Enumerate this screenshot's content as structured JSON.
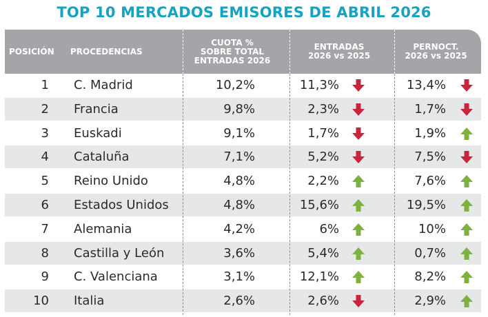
{
  "title": "TOP 10 MERCADOS EMISORES DE ABRIL 2026",
  "headers": {
    "posicion": "POSICIÓN",
    "procedencias": "PROCEDENCIAS",
    "cuota": "CUOTA %\nSOBRE TOTAL\nENTRADAS 2026",
    "entradas": "ENTRADAS\n2026 vs 2025",
    "pernoct": "PERNOCT.\n2026 vs 2025"
  },
  "colors": {
    "down": "#c8243c",
    "up": "#7eb13f",
    "title": "#16a3c2",
    "header_bg": "#a3a5a8",
    "shade": "#e6e7e8"
  },
  "rows": [
    {
      "pos": "1",
      "name": "C. Madrid",
      "cuota": "10,2%",
      "entradas": "11,3%",
      "entradas_trend": "down",
      "pernoct": "13,4%",
      "pernoct_trend": "down"
    },
    {
      "pos": "2",
      "name": "Francia",
      "cuota": "9,8%",
      "entradas": "2,3%",
      "entradas_trend": "down",
      "pernoct": "1,7%",
      "pernoct_trend": "down"
    },
    {
      "pos": "3",
      "name": "Euskadi",
      "cuota": "9,1%",
      "entradas": "1,7%",
      "entradas_trend": "down",
      "pernoct": "1,9%",
      "pernoct_trend": "up"
    },
    {
      "pos": "4",
      "name": "Cataluña",
      "cuota": "7,1%",
      "entradas": "5,2%",
      "entradas_trend": "down",
      "pernoct": "7,5%",
      "pernoct_trend": "down"
    },
    {
      "pos": "5",
      "name": "Reino Unido",
      "cuota": "4,8%",
      "entradas": "2,2%",
      "entradas_trend": "up",
      "pernoct": "7,6%",
      "pernoct_trend": "up"
    },
    {
      "pos": "6",
      "name": "Estados Unidos",
      "cuota": "4,8%",
      "entradas": "15,6%",
      "entradas_trend": "up",
      "pernoct": "19,5%",
      "pernoct_trend": "up"
    },
    {
      "pos": "7",
      "name": "Alemania",
      "cuota": "4,2%",
      "entradas": "6%",
      "entradas_trend": "up",
      "pernoct": "10%",
      "pernoct_trend": "up"
    },
    {
      "pos": "8",
      "name": "Castilla y León",
      "cuota": "3,6%",
      "entradas": "5,4%",
      "entradas_trend": "up",
      "pernoct": "0,7%",
      "pernoct_trend": "up"
    },
    {
      "pos": "9",
      "name": "C. Valenciana",
      "cuota": "3,1%",
      "entradas": "12,1%",
      "entradas_trend": "up",
      "pernoct": "8,2%",
      "pernoct_trend": "up"
    },
    {
      "pos": "10",
      "name": "Italia",
      "cuota": "2,6%",
      "entradas": "2,6%",
      "entradas_trend": "down",
      "pernoct": "2,9%",
      "pernoct_trend": "up"
    }
  ]
}
